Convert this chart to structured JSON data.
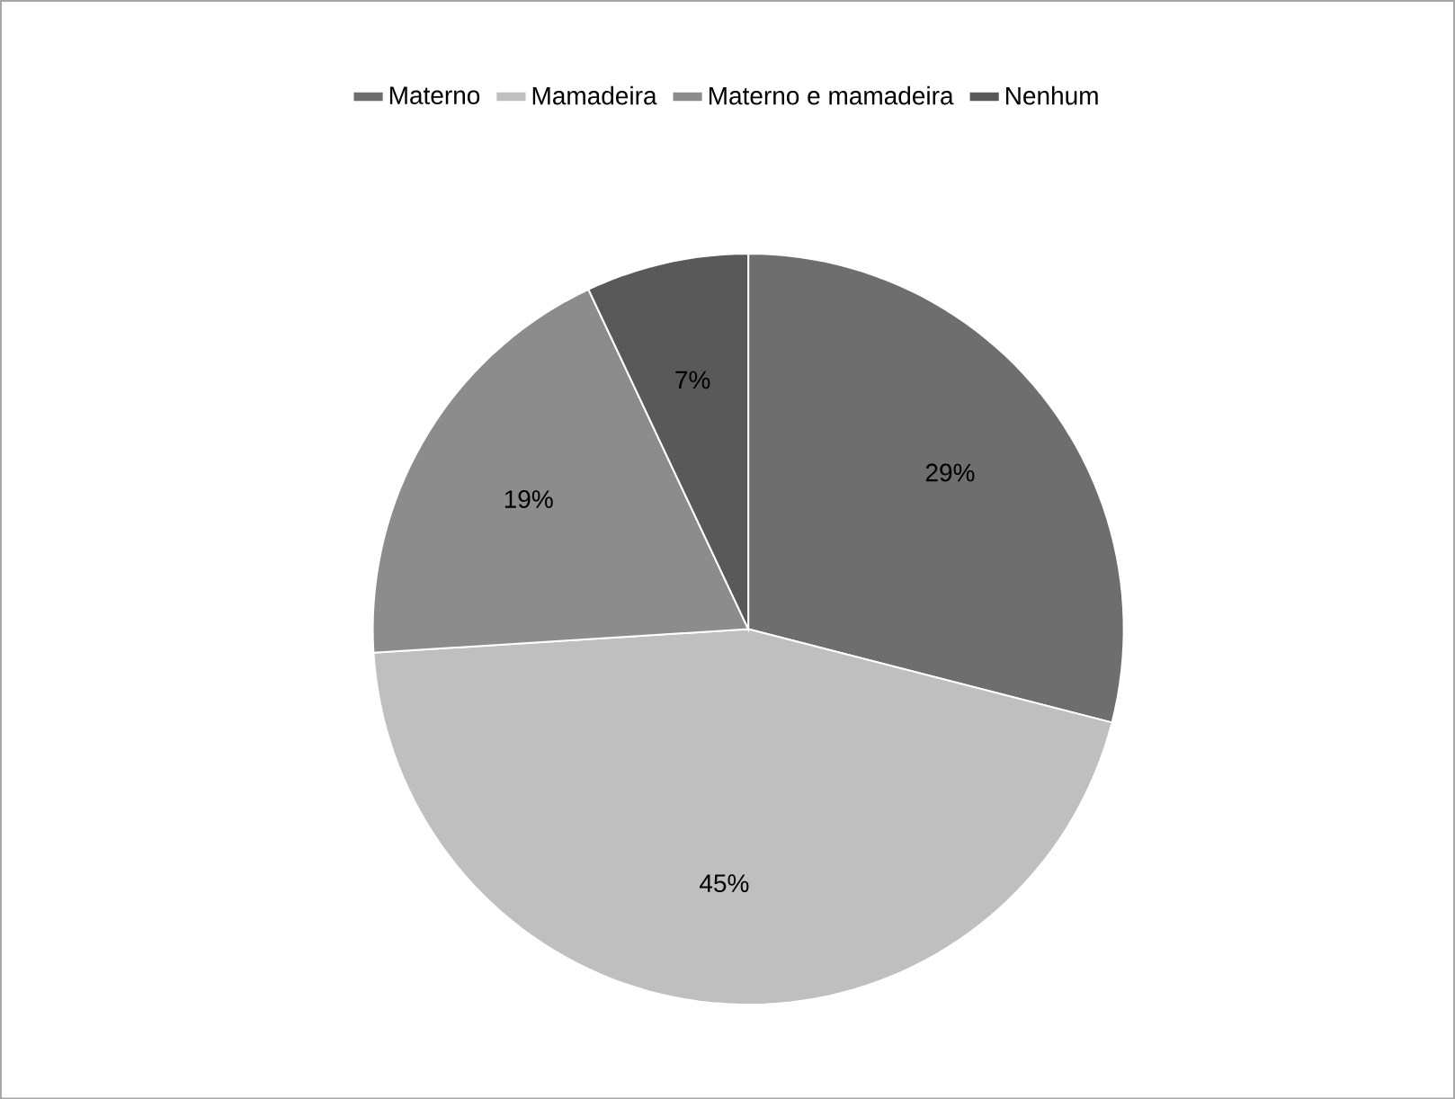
{
  "chart_data": {
    "type": "pie",
    "categories": [
      "Materno",
      "Mamadeira",
      "Materno e mamadeira",
      "Nenhum"
    ],
    "values": [
      29,
      45,
      19,
      7
    ],
    "value_labels": [
      "29%",
      "45%",
      "19%",
      "7%"
    ],
    "colors": [
      "#6e6e6e",
      "#bfbfbf",
      "#8c8c8c",
      "#595959"
    ],
    "legend": "top"
  }
}
